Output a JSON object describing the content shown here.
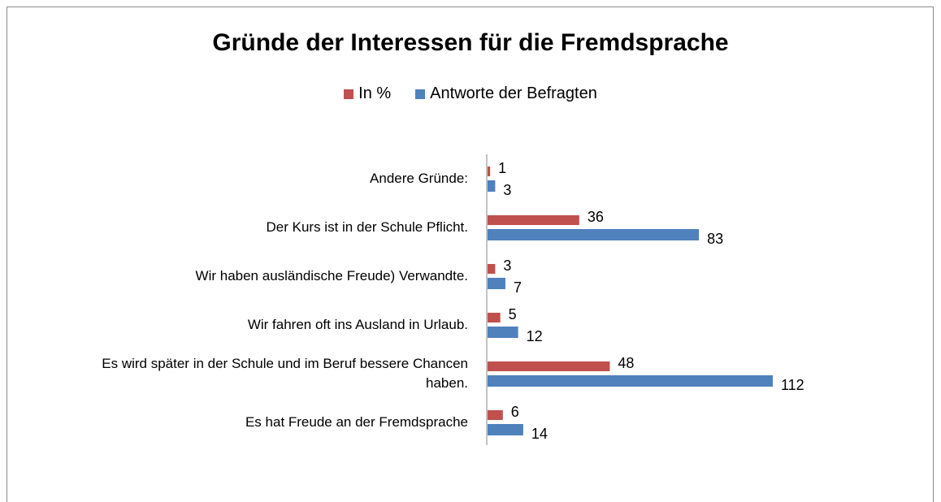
{
  "chart_data": {
    "type": "hbar",
    "title": "Gründe der Interessen für die Fremdsprache",
    "categories": [
      "Andere Gründe:",
      "Der Kurs ist in der Schule Pflicht.",
      "Wir haben ausländische Freude) Verwandte.",
      "Wir fahren oft ins Ausland in Urlaub.",
      "Es wird später in der Schule und im Beruf bessere Chancen haben.",
      "Es hat Freude an der Fremdsprache"
    ],
    "series": [
      {
        "name": "In %",
        "color": "#c0504d",
        "values": [
          1,
          36,
          3,
          5,
          48,
          6
        ]
      },
      {
        "name": "Antworte der Befragten",
        "color": "#4f81bd",
        "values": [
          3,
          83,
          7,
          12,
          112,
          14
        ]
      }
    ],
    "legend": "top"
  }
}
